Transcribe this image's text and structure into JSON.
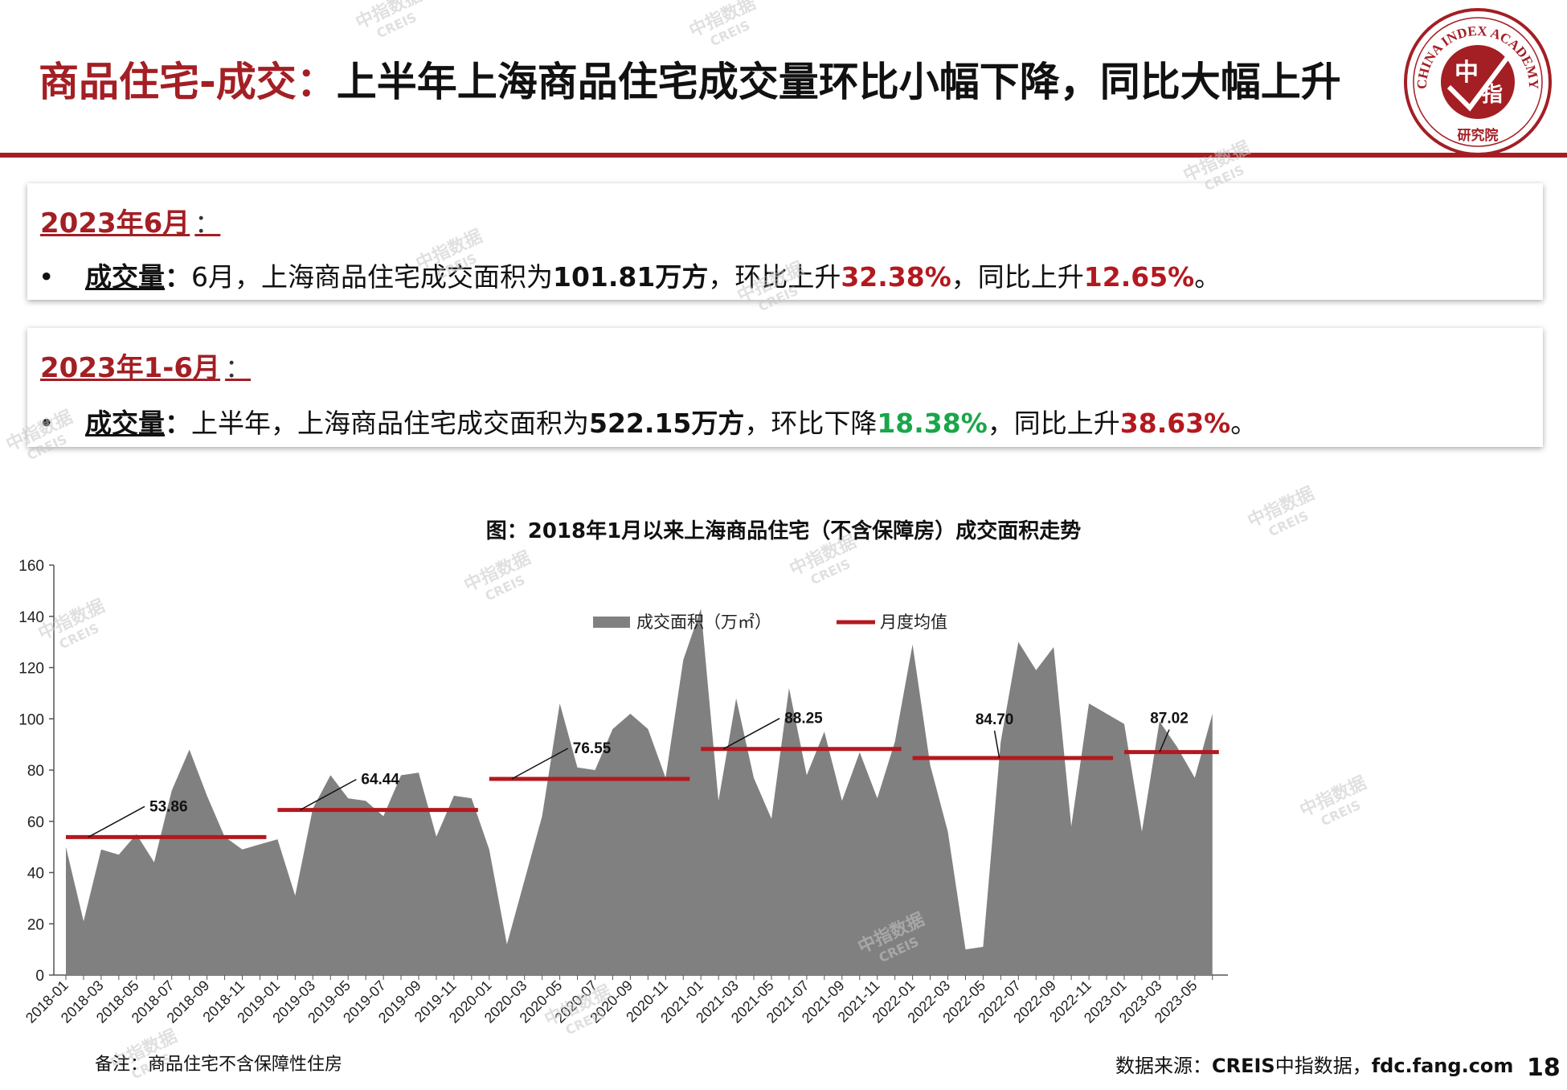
{
  "header": {
    "title_accent": "商品住宅-成交：",
    "title_rest": "上半年上海商品住宅成交量环比小幅下降，同比大幅上升",
    "logo_text_top": "CHINA INDEX ACADEMY",
    "logo_text_mid1": "中",
    "logo_text_mid2": "指",
    "logo_text_bottom": "研究院"
  },
  "panel1": {
    "period": "2023年6月",
    "colon": "：",
    "label": "成交量",
    "sep": "：",
    "text1": "6月，上海商品住宅成交面积为",
    "area": "101.81万方",
    "text2": "，环比上升",
    "mom": "32.38%",
    "text3": "，同比上升",
    "yoy": "12.65%",
    "end": "。"
  },
  "panel2": {
    "period": "2023年1-6月",
    "colon": "：",
    "label": "成交量",
    "sep": "：",
    "text1": "上半年，上海商品住宅成交面积为",
    "area": "522.15万方",
    "text2": "，环比下降",
    "mom": "18.38%",
    "text3": "，同比上升",
    "yoy": "38.63%",
    "end": "。"
  },
  "footer": {
    "note": "备注：商品住宅不含保障性住房",
    "source_prefix": "数据来源：",
    "source_bold": "CREIS",
    "source_mid": "中指数据，",
    "source_url": "fdc.fang.com",
    "page": "18"
  },
  "watermark": {
    "line1": "中指数据",
    "line2": "CREIS"
  },
  "colors": {
    "accent": "#a31f24",
    "area": "#808080",
    "avg_line": "#b3191f",
    "up": "#b3191f",
    "down": "#1aa64a"
  },
  "chart_data": {
    "type": "area",
    "title": "图：2018年1月以来上海商品住宅（不含保障房）成交面积走势",
    "ylim": [
      0,
      160
    ],
    "yticks": [
      0,
      20,
      40,
      60,
      80,
      100,
      120,
      140,
      160
    ],
    "x_tick_labels": [
      "2018-01",
      "2018-03",
      "2018-05",
      "2018-07",
      "2018-09",
      "2018-11",
      "2019-01",
      "2019-03",
      "2019-05",
      "2019-07",
      "2019-09",
      "2019-11",
      "2020-01",
      "2020-03",
      "2020-05",
      "2020-07",
      "2020-09",
      "2020-11",
      "2021-01",
      "2021-03",
      "2021-05",
      "2021-07",
      "2021-09",
      "2021-11",
      "2022-01",
      "2022-03",
      "2022-05",
      "2022-07",
      "2022-09",
      "2022-11",
      "2023-01",
      "2023-03",
      "2023-05"
    ],
    "legend": {
      "position": "top-center",
      "items": [
        "成交面积（万㎡）",
        "月度均值"
      ]
    },
    "series": [
      {
        "name": "成交面积（万㎡）",
        "values": [
          50,
          21,
          49,
          47,
          55,
          44,
          72,
          88,
          70,
          54,
          49,
          51,
          53,
          31,
          65,
          78,
          69,
          68,
          62,
          78,
          79,
          54,
          70,
          69,
          49,
          12,
          37,
          62,
          106,
          81,
          80,
          96,
          102,
          96,
          77,
          123,
          143,
          68,
          108,
          77,
          61,
          112,
          78,
          95,
          68,
          87,
          69,
          91,
          129,
          82,
          56,
          10,
          11,
          91,
          130,
          119,
          128,
          58,
          106,
          102,
          98,
          56,
          99,
          89,
          77,
          102
        ]
      },
      {
        "name": "月度均值",
        "segments": [
          {
            "from": "2018-01",
            "to": "2018-12",
            "value": 53.86,
            "label": "53.86"
          },
          {
            "from": "2019-01",
            "to": "2019-12",
            "value": 64.44,
            "label": "64.44"
          },
          {
            "from": "2020-01",
            "to": "2020-12",
            "value": 76.55,
            "label": "76.55"
          },
          {
            "from": "2021-01",
            "to": "2021-12",
            "value": 88.25,
            "label": "88.25"
          },
          {
            "from": "2022-01",
            "to": "2022-12",
            "value": 84.7,
            "label": "84.70"
          },
          {
            "from": "2023-01",
            "to": "2023-06",
            "value": 87.02,
            "label": "87.02"
          }
        ]
      }
    ]
  }
}
